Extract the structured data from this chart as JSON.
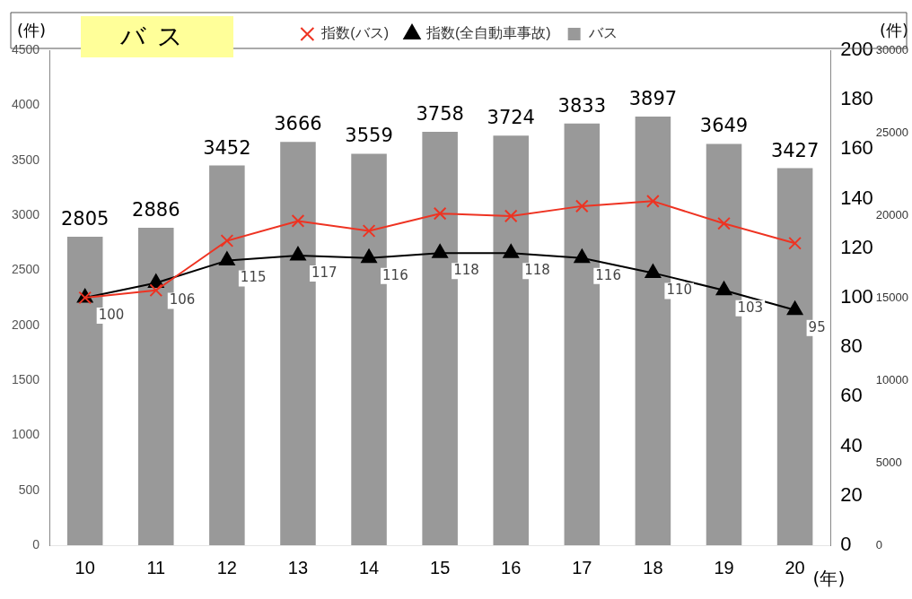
{
  "chart_data": {
    "type": "bar",
    "title": "バス",
    "xlabel": "(年)",
    "ylabel": "(件)",
    "y3label": "(件)",
    "categories": [
      "10",
      "11",
      "12",
      "13",
      "14",
      "15",
      "16",
      "17",
      "18",
      "19",
      "20"
    ],
    "series": [
      {
        "name": "バス",
        "color": "#999999",
        "values": [
          2805,
          2886,
          3452,
          3666,
          3559,
          3758,
          3724,
          3833,
          3897,
          3649,
          3427
        ],
        "value_labels": [
          "2805",
          "2886",
          "3452",
          "3666",
          "3559",
          "3758",
          "3724",
          "3833",
          "3897",
          "3649",
          "3427"
        ]
      },
      {
        "name": "指数(全自動車事故)",
        "type": "line",
        "axis": "y2",
        "color": "#000000",
        "marker": "triangle",
        "values": [
          100,
          106,
          115,
          117,
          116,
          118,
          118,
          116,
          110,
          103,
          95
        ],
        "value_labels": [
          "100",
          "106",
          "115",
          "117",
          "116",
          "118",
          "118",
          "116",
          "110",
          "103",
          "95"
        ]
      },
      {
        "name": "指数(バス)",
        "type": "line",
        "axis": "y2",
        "color": "#ee3322",
        "marker": "cross",
        "values": [
          100,
          103,
          123,
          131,
          127,
          134,
          133,
          137,
          139,
          130,
          122
        ]
      }
    ],
    "ylim": [
      0,
      4500
    ],
    "yticks": [
      0,
      500,
      1000,
      1500,
      2000,
      2500,
      3000,
      3500,
      4000,
      4500
    ],
    "y2lim": [
      0,
      200
    ],
    "y2ticks": [
      0,
      20,
      40,
      60,
      80,
      100,
      120,
      140,
      160,
      180,
      200
    ],
    "y3lim": [
      0,
      30000
    ],
    "y3ticks": [
      0,
      5000,
      10000,
      15000,
      20000,
      25000,
      30000
    ],
    "legend": "top",
    "grid": false
  }
}
